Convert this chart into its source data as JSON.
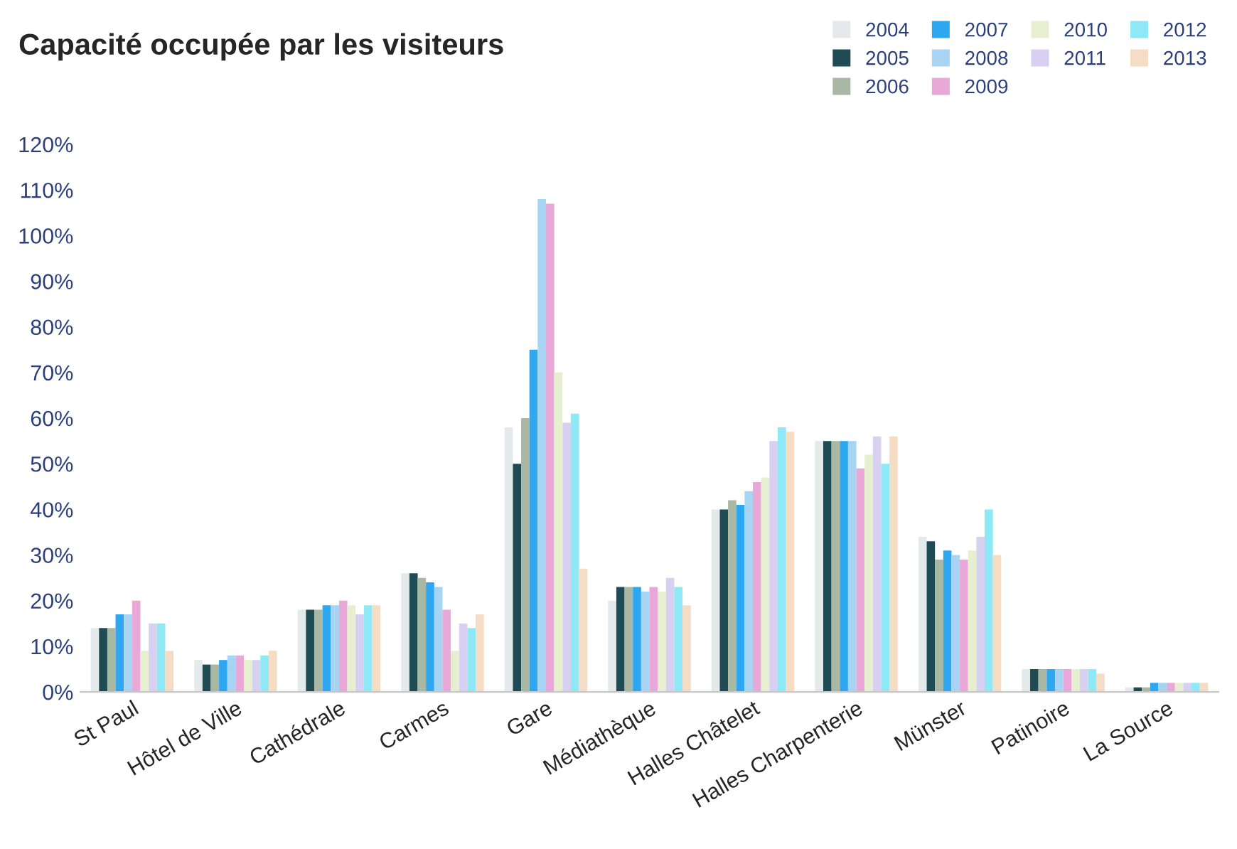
{
  "chart_data": {
    "type": "bar",
    "title": "Capacité occupée par les visiteurs",
    "categories": [
      "St Paul",
      "Hôtel de Ville",
      "Cathédrale",
      "Carmes",
      "Gare",
      "Médiathèque",
      "Halles Châtelet",
      "Halles Charpenterie",
      "Münster",
      "Patinoire",
      "La Source"
    ],
    "series": [
      {
        "name": "2004",
        "color": "#e4eaec",
        "values": [
          14,
          7,
          18,
          26,
          58,
          20,
          40,
          55,
          34,
          5,
          1
        ]
      },
      {
        "name": "2005",
        "color": "#1f4b55",
        "values": [
          14,
          6,
          18,
          26,
          50,
          23,
          40,
          55,
          33,
          5,
          1
        ]
      },
      {
        "name": "2006",
        "color": "#a9b8a3",
        "values": [
          14,
          6,
          18,
          25,
          60,
          23,
          42,
          55,
          29,
          5,
          1
        ]
      },
      {
        "name": "2007",
        "color": "#2ea6f0",
        "values": [
          17,
          7,
          19,
          24,
          75,
          23,
          41,
          55,
          31,
          5,
          2
        ]
      },
      {
        "name": "2008",
        "color": "#a6d4f2",
        "values": [
          17,
          8,
          19,
          23,
          108,
          22,
          44,
          55,
          30,
          5,
          2
        ]
      },
      {
        "name": "2009",
        "color": "#e8a8d8",
        "values": [
          20,
          8,
          20,
          18,
          107,
          23,
          46,
          49,
          29,
          5,
          2
        ]
      },
      {
        "name": "2010",
        "color": "#e6f0d0",
        "values": [
          9,
          7,
          19,
          9,
          70,
          22,
          47,
          52,
          31,
          5,
          2
        ]
      },
      {
        "name": "2011",
        "color": "#d8d0f0",
        "values": [
          15,
          7,
          17,
          15,
          59,
          25,
          55,
          56,
          34,
          5,
          2
        ]
      },
      {
        "name": "2012",
        "color": "#8ee8f5",
        "values": [
          15,
          8,
          19,
          14,
          61,
          23,
          58,
          50,
          40,
          5,
          2
        ]
      },
      {
        "name": "2013",
        "color": "#f5dcc4",
        "values": [
          9,
          9,
          19,
          17,
          27,
          19,
          57,
          56,
          30,
          4,
          2
        ]
      }
    ],
    "ylim": [
      0,
      120
    ],
    "yticks": [
      {
        "value": 0,
        "label": "0%"
      },
      {
        "value": 10,
        "label": "10%"
      },
      {
        "value": 20,
        "label": "20%"
      },
      {
        "value": 30,
        "label": "30%"
      },
      {
        "value": 40,
        "label": "40%"
      },
      {
        "value": 50,
        "label": "50%"
      },
      {
        "value": 60,
        "label": "60%"
      },
      {
        "value": 70,
        "label": "70%"
      },
      {
        "value": 80,
        "label": "80%"
      },
      {
        "value": 90,
        "label": "90%"
      },
      {
        "value": 100,
        "label": "100%"
      },
      {
        "value": 110,
        "label": "110%"
      },
      {
        "value": 120,
        "label": "120%"
      }
    ],
    "grid": false,
    "legend": "top right"
  }
}
